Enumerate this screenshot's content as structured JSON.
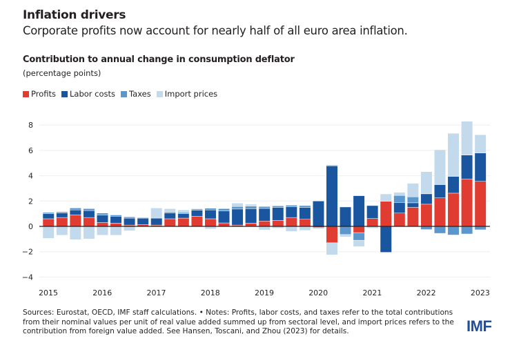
{
  "header": {
    "title": "Inflation drivers",
    "subtitle": "Corporate profits now account for nearly half of all euro area inflation."
  },
  "chart_data": {
    "type": "bar",
    "stacked": true,
    "title": "Contribution to annual change in consumption deflator",
    "ylabel": "(percentage points)",
    "ylim": [
      -4,
      8
    ],
    "yticks": [
      -4,
      -2,
      0,
      2,
      4,
      6,
      8
    ],
    "grid": true,
    "legend_position": "top-left",
    "xtick_labels": [
      "2015",
      "2016",
      "2017",
      "2018",
      "2019",
      "2020",
      "2021",
      "2022",
      "2023"
    ],
    "categories": [
      "2015Q1",
      "2015Q2",
      "2015Q3",
      "2015Q4",
      "2016Q1",
      "2016Q2",
      "2016Q3",
      "2016Q4",
      "2017Q1",
      "2017Q2",
      "2017Q3",
      "2017Q4",
      "2018Q1",
      "2018Q2",
      "2018Q3",
      "2018Q4",
      "2019Q1",
      "2019Q2",
      "2019Q3",
      "2019Q4",
      "2020Q1",
      "2020Q2",
      "2020Q3",
      "2020Q4",
      "2021Q1",
      "2021Q2",
      "2021Q3",
      "2021Q4",
      "2022Q1",
      "2022Q2",
      "2022Q3",
      "2022Q4",
      "2023Q1"
    ],
    "series": [
      {
        "name": "Profits",
        "color": "#e03c31",
        "values": [
          0.6,
          0.7,
          0.9,
          0.7,
          0.3,
          0.25,
          0.1,
          0.15,
          0.1,
          0.6,
          0.65,
          0.8,
          0.6,
          0.27,
          0.1,
          0.25,
          0.42,
          0.47,
          0.7,
          0.56,
          -0.1,
          -1.3,
          0.0,
          -0.5,
          0.62,
          1.98,
          1.05,
          1.5,
          1.75,
          2.25,
          2.62,
          3.73,
          3.56
        ]
      },
      {
        "name": "Labor costs",
        "color": "#1a56a0",
        "values": [
          0.4,
          0.35,
          0.4,
          0.55,
          0.6,
          0.55,
          0.55,
          0.5,
          0.55,
          0.45,
          0.35,
          0.47,
          0.7,
          0.95,
          1.27,
          1.15,
          1.0,
          1.02,
          0.84,
          0.93,
          2.0,
          4.78,
          1.53,
          2.42,
          1.02,
          -2.05,
          0.84,
          0.36,
          0.82,
          1.05,
          1.33,
          1.9,
          2.24
        ]
      },
      {
        "name": "Taxes",
        "color": "#5b97cc",
        "values": [
          0.1,
          0.1,
          0.15,
          0.15,
          0.15,
          0.1,
          0.1,
          0.05,
          0.05,
          0.1,
          0.1,
          0.1,
          0.13,
          0.18,
          0.2,
          0.2,
          0.15,
          0.13,
          0.13,
          0.15,
          0.0,
          0.05,
          -0.65,
          -0.6,
          0.0,
          0.0,
          0.55,
          0.47,
          -0.25,
          -0.55,
          -0.68,
          -0.6,
          -0.27
        ]
      },
      {
        "name": "Import prices",
        "color": "#c3d9ec",
        "values": [
          -0.95,
          -0.7,
          -1.05,
          -1.0,
          -0.7,
          -0.7,
          -0.35,
          0.0,
          0.75,
          0.25,
          0.2,
          0.05,
          -0.2,
          0.0,
          0.27,
          0.15,
          -0.28,
          -0.15,
          -0.4,
          -0.32,
          -0.1,
          -0.95,
          -0.18,
          -0.5,
          -0.15,
          0.58,
          0.25,
          1.07,
          1.75,
          2.75,
          3.4,
          2.67,
          1.44
        ]
      }
    ]
  },
  "footer": {
    "notes": "Sources: Eurostat, OECD, IMF staff calculations. • Notes: Profits, labor costs, and taxes refer to the total contributions from their nominal values per unit of real value added summed up from sectoral level, and import prices refers to the contribution from foreign value added. See Hansen, Toscani, and Zhou (2023) for details.",
    "logo": "IMF"
  }
}
